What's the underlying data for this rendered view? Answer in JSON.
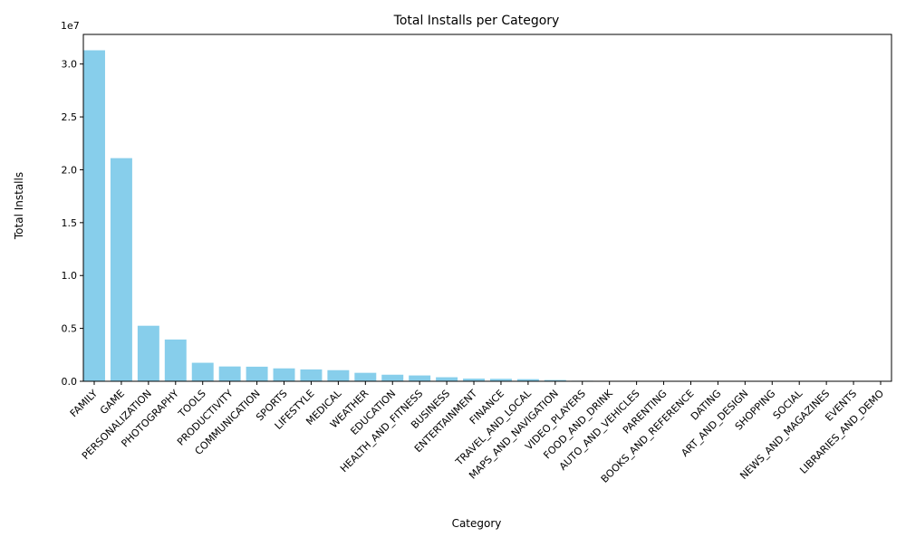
{
  "chart_data": {
    "type": "bar",
    "title": "Total Installs per Category",
    "xlabel": "Category",
    "ylabel": "Total Installs",
    "y_scale_label": "1e7",
    "ylim": [
      0,
      32800000
    ],
    "y_ticks": [
      0,
      5000000,
      10000000,
      15000000,
      20000000,
      25000000,
      30000000
    ],
    "y_tick_labels": [
      "0.0",
      "0.5",
      "1.0",
      "1.5",
      "2.0",
      "2.5",
      "3.0"
    ],
    "bar_color": "#87ceeb",
    "grid": false,
    "categories": [
      "FAMILY",
      "GAME",
      "PERSONALIZATION",
      "PHOTOGRAPHY",
      "TOOLS",
      "PRODUCTIVITY",
      "COMMUNICATION",
      "SPORTS",
      "LIFESTYLE",
      "MEDICAL",
      "WEATHER",
      "EDUCATION",
      "HEALTH_AND_FITNESS",
      "BUSINESS",
      "ENTERTAINMENT",
      "FINANCE",
      "TRAVEL_AND_LOCAL",
      "MAPS_AND_NAVIGATION",
      "VIDEO_PLAYERS",
      "FOOD_AND_DRINK",
      "AUTO_AND_VEHICLES",
      "PARENTING",
      "BOOKS_AND_REFERENCE",
      "DATING",
      "ART_AND_DESIGN",
      "SHOPPING",
      "SOCIAL",
      "NEWS_AND_MAGAZINES",
      "EVENTS",
      "LIBRARIES_AND_DEMO"
    ],
    "values": [
      31300000,
      21100000,
      5250000,
      3950000,
      1750000,
      1400000,
      1380000,
      1220000,
      1120000,
      1050000,
      800000,
      620000,
      550000,
      380000,
      250000,
      230000,
      200000,
      120000,
      50000,
      30000,
      25000,
      20000,
      18000,
      15000,
      12000,
      10000,
      8000,
      6000,
      5000,
      4000
    ]
  }
}
